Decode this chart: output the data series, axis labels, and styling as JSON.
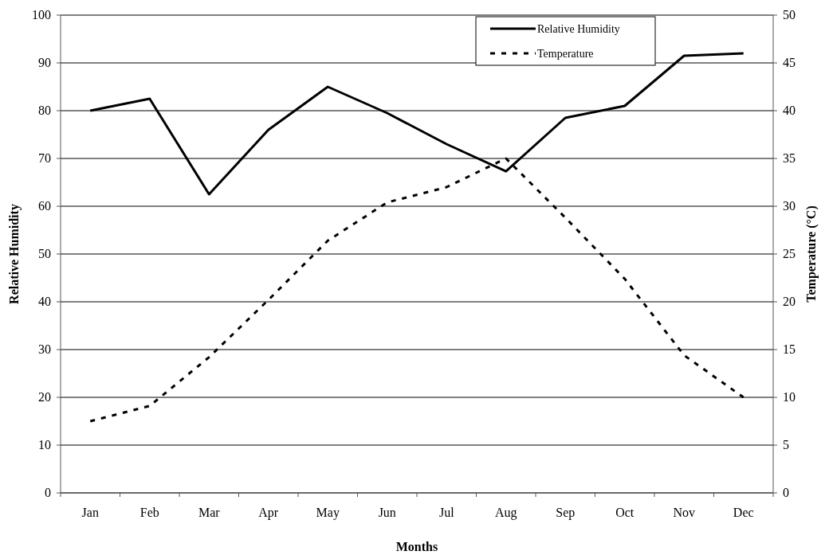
{
  "chart_data": {
    "type": "line",
    "xlabel": "Months",
    "ylabel": "Relative Humidity",
    "y2label": "Temperature (°C)",
    "categories": [
      "Jan",
      "Feb",
      "Mar",
      "Apr",
      "May",
      "Jun",
      "Jul",
      "Aug",
      "Sep",
      "Oct",
      "Nov",
      "Dec"
    ],
    "series": [
      {
        "name": "Relative Humidity",
        "color": "#000000",
        "line_style": "solid",
        "values": [
          80,
          82.5,
          62.5,
          76,
          85,
          79.5,
          73,
          67.3,
          78.5,
          81,
          91.5,
          92
        ]
      },
      {
        "name": "Temperature",
        "color": "#000000",
        "line_style": "dashed",
        "axis": "y2",
        "values": [
          7.5,
          9.1,
          14.2,
          20.2,
          26.4,
          30.4,
          32,
          35,
          28.8,
          22.4,
          14.4,
          10
        ]
      }
    ],
    "ylim": [
      0,
      100
    ],
    "yticks": [
      0,
      10,
      20,
      30,
      40,
      50,
      60,
      70,
      80,
      90,
      100
    ],
    "y2lim": [
      0,
      50
    ],
    "y2ticks": [
      0,
      5,
      10,
      15,
      20,
      25,
      30,
      35,
      40,
      45,
      50
    ],
    "grid": "y",
    "legend": "top right",
    "marker": "none"
  }
}
